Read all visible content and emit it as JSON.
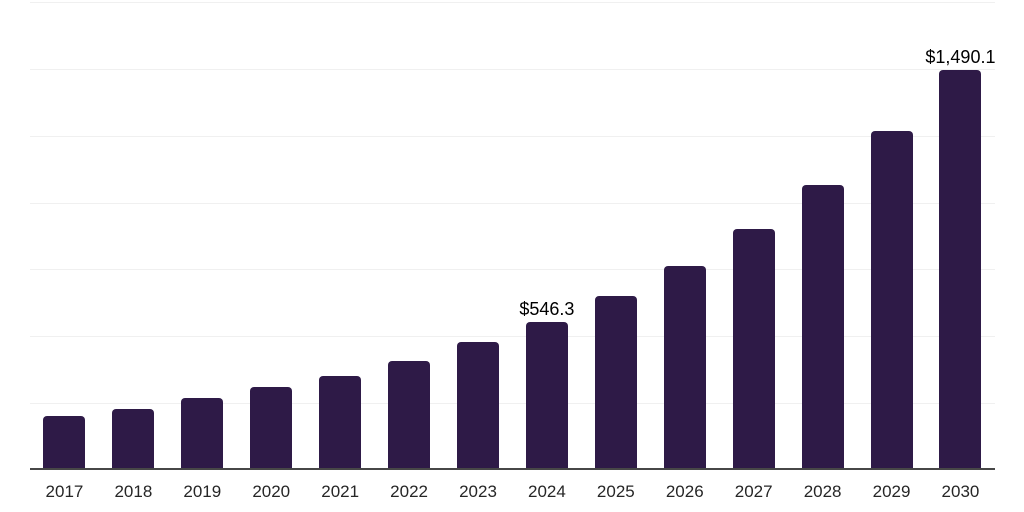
{
  "chart": {
    "background_color": "#ffffff",
    "bar_color": "#2e1a47",
    "gridline_color": "#f0f0f0",
    "axis_line_color": "#474747",
    "value_label_color": "#000000",
    "tick_label_color": "#262626"
  },
  "chart_data": {
    "type": "bar",
    "title": "",
    "xlabel": "",
    "ylabel": "",
    "categories": [
      "2017",
      "2018",
      "2019",
      "2020",
      "2021",
      "2022",
      "2023",
      "2024",
      "2025",
      "2026",
      "2027",
      "2028",
      "2029",
      "2030"
    ],
    "values": [
      194,
      221,
      262,
      303,
      344,
      400,
      471,
      546.3,
      642,
      756,
      894,
      1057,
      1261,
      1490.1
    ],
    "data_labels": {
      "2024": "$546.3",
      "2030": "$1,490.1"
    },
    "ylim": [
      0,
      1750
    ],
    "gridline_interval": 250,
    "grid": "horizontal",
    "legend_position": "none",
    "y_axis_labels_visible": false
  }
}
